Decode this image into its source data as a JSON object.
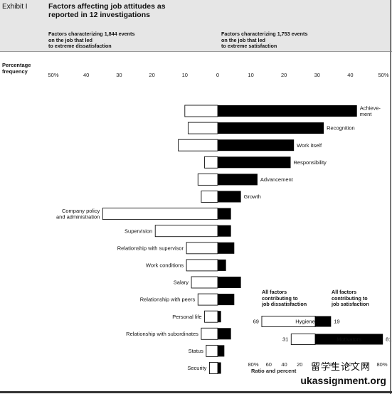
{
  "exhibit_label": "Exhibit I",
  "title_line1": "Factors affecting job attitudes as",
  "title_line2": "reported in 12 investigations",
  "left_header": [
    "Factors characterizing 1,844 events",
    "on the job that led",
    "to extreme dissatisfaction"
  ],
  "right_header": [
    "Factors characterizing 1,753 events",
    "on the job that led",
    "to extreme satisfaction"
  ],
  "axis_title": [
    "Percentage",
    "frequency"
  ],
  "chart_data": {
    "type": "bar",
    "orientation": "horizontal-diverging",
    "x_ticks": [
      "50%",
      "40",
      "30",
      "20",
      "10",
      "0",
      "10",
      "20",
      "30",
      "40",
      "50%"
    ],
    "x_tick_values": [
      -50,
      -40,
      -30,
      -20,
      -10,
      0,
      10,
      20,
      30,
      40,
      50
    ],
    "xlim": [
      -50,
      50
    ],
    "series": [
      {
        "name": "dissatisfaction",
        "color": "#ffffff"
      },
      {
        "name": "satisfaction",
        "color": "#000000"
      }
    ],
    "factors": [
      {
        "label": [
          "Achieve-",
          "ment"
        ],
        "dissatisfaction": 10,
        "satisfaction": 42,
        "label_side": "right"
      },
      {
        "label": [
          "Recognition"
        ],
        "dissatisfaction": 9,
        "satisfaction": 32,
        "label_side": "right"
      },
      {
        "label": [
          "Work itself"
        ],
        "dissatisfaction": 12,
        "satisfaction": 23,
        "label_side": "right"
      },
      {
        "label": [
          "Responsibility"
        ],
        "dissatisfaction": 4,
        "satisfaction": 22,
        "label_side": "right"
      },
      {
        "label": [
          "Advancement"
        ],
        "dissatisfaction": 6,
        "satisfaction": 12,
        "label_side": "right"
      },
      {
        "label": [
          "Growth"
        ],
        "dissatisfaction": 5,
        "satisfaction": 7,
        "label_side": "right"
      },
      {
        "label": [
          "Company policy",
          "and administration"
        ],
        "dissatisfaction": 35,
        "satisfaction": 4,
        "label_side": "left"
      },
      {
        "label": [
          "Supervision"
        ],
        "dissatisfaction": 19,
        "satisfaction": 4,
        "label_side": "left"
      },
      {
        "label": [
          "Relationship with supervisor"
        ],
        "dissatisfaction": 9.5,
        "satisfaction": 5,
        "label_side": "left"
      },
      {
        "label": [
          "Work conditions"
        ],
        "dissatisfaction": 9.5,
        "satisfaction": 2.5,
        "label_side": "left"
      },
      {
        "label": [
          "Salary"
        ],
        "dissatisfaction": 8,
        "satisfaction": 7,
        "label_side": "left"
      },
      {
        "label": [
          "Relationship with peers"
        ],
        "dissatisfaction": 6,
        "satisfaction": 5,
        "label_side": "left"
      },
      {
        "label": [
          "Personal life"
        ],
        "dissatisfaction": 4,
        "satisfaction": 1,
        "label_side": "left"
      },
      {
        "label": [
          "Relationship with subordinates"
        ],
        "dissatisfaction": 5,
        "satisfaction": 4,
        "label_side": "left"
      },
      {
        "label": [
          "Status"
        ],
        "dissatisfaction": 3.5,
        "satisfaction": 2,
        "label_side": "left"
      },
      {
        "label": [
          "Security"
        ],
        "dissatisfaction": 2.5,
        "satisfaction": 1,
        "label_side": "left"
      }
    ],
    "inset": {
      "left_head": [
        "All factors",
        "contributing to",
        "job dissatisfaction"
      ],
      "right_head": [
        "All factors",
        "contributing to",
        "job satisfaction"
      ],
      "rows": [
        {
          "label": "Hygiene",
          "dissatisfaction": 69,
          "satisfaction": 19
        },
        {
          "label": "Motivators",
          "dissatisfaction": 31,
          "satisfaction": 81
        }
      ],
      "x_ticks": [
        "80%",
        "60",
        "40",
        "20",
        "0",
        "20",
        "40",
        "60",
        "80%"
      ],
      "x_tick_values": [
        -80,
        -60,
        -40,
        -20,
        0,
        20,
        40,
        60,
        80
      ],
      "axis_title": "Ratio and percent"
    }
  },
  "watermark_line1": "留学生论文网",
  "watermark_line2": "ukassignment.org"
}
